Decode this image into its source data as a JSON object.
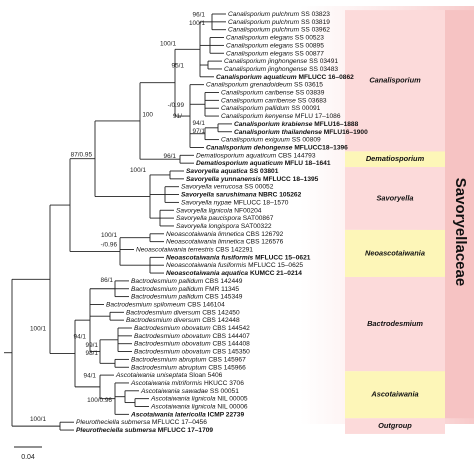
{
  "leaves": [
    {
      "name": "Canalisporium pulchrum",
      "strain": "SS 03823"
    },
    {
      "name": "Canalisporium pulchrum",
      "strain": "SS 03819"
    },
    {
      "name": "Canalisporium pulchrum",
      "strain": "SS 03962"
    },
    {
      "name": "Canalisporium elegans",
      "strain": "SS 00523"
    },
    {
      "name": "Canalisporium elegans",
      "strain": "SS 00895"
    },
    {
      "name": "Canalisporium elegans",
      "strain": "SS 00877"
    },
    {
      "name": "Canalisporium jinghongense",
      "strain": "SS 03491"
    },
    {
      "name": "Canalisporium jinghongense",
      "strain": "SS 03483"
    },
    {
      "name": "Canalisporium aquaticum",
      "strain": "MFLUCC 16–0862",
      "bold": true
    },
    {
      "name": "Canalisporium grenadoideum",
      "strain": "SS 03615"
    },
    {
      "name": "Canalisporium caribense",
      "strain": "SS 03839"
    },
    {
      "name": "Canalisporium carribense",
      "strain": "SS 03683"
    },
    {
      "name": "Canalisporium pallidum",
      "strain": "SS 00091"
    },
    {
      "name": "Canalisporium kenyense",
      "strain": "MFLU 17–1086"
    },
    {
      "name": "Canalisporium krabiense",
      "strain": "MFLU16–1888",
      "bold": true
    },
    {
      "name": "Canalisporium thailandense",
      "strain": "MFLU16–1900",
      "bold": true
    },
    {
      "name": "Canalisporium exiguum",
      "strain": "SS 00809"
    },
    {
      "name": "Canalisporium dehongense",
      "strain": "MFLUCC18–1396",
      "bold": true
    },
    {
      "name": "Dematiosporium aquaticum",
      "strain": "CBS 144793"
    },
    {
      "name": "Dematiosporium aquaticum",
      "strain": "MFLU 18–1641",
      "bold": true
    },
    {
      "name": "Savoryella aquatica",
      "strain": "SS 03801",
      "bold": true
    },
    {
      "name": "Savoryella yunnanensis",
      "strain": "MFLUCC 18–1395",
      "bold": true
    },
    {
      "name": "Savoryella verrucosa",
      "strain": "SS 00052"
    },
    {
      "name": "Savoryella sarushimana",
      "strain": "NBRC 105262",
      "bold": true
    },
    {
      "name": "Savoryella nypae",
      "strain": "MFLUCC 18–1570"
    },
    {
      "name": "Savoryella lignicola",
      "strain": "NF00204"
    },
    {
      "name": "Savoryella paucispora",
      "strain": "SAT00867"
    },
    {
      "name": "Savoryella longispora",
      "strain": "SAT00322"
    },
    {
      "name": "Neoascotaiwania limnetica",
      "strain": "CBS 126792"
    },
    {
      "name": "Neoascotaiwania limnetica",
      "strain": "CBS 126576"
    },
    {
      "name": "Neoascotaiwania terrestris",
      "strain": "CBS 142291"
    },
    {
      "name": "Neoascotaiwania fusiformis",
      "strain": "MFLUCC 15–0621",
      "bold": true
    },
    {
      "name": "Neoascotaiwania fusiformis",
      "strain": "MFLUCC 15–0625"
    },
    {
      "name": "Neoascotaiwania aquatica",
      "strain": "KUMCC 21–0214",
      "bold": true,
      "color": "#e0201b"
    },
    {
      "name": "Bactrodesmium pallidum",
      "strain": "CBS 142449"
    },
    {
      "name": "Bactrodesmium pallidum",
      "strain": "FMR 11345"
    },
    {
      "name": "Bactrodesmium pallidum",
      "strain": "CBS 145349"
    },
    {
      "name": "Bactrodesmium spilomeum",
      "strain": "CBS 146104"
    },
    {
      "name": "Bactrodesmium diversum",
      "strain": "CBS 142450"
    },
    {
      "name": "Bactrodesmium diversum",
      "strain": "CBS 142448"
    },
    {
      "name": "Bactrodesmium obovatum",
      "strain": "CBS 144542"
    },
    {
      "name": "Bactrodesmium obovatum",
      "strain": "CBS 144407"
    },
    {
      "name": "Bactrodesmium obovatum",
      "strain": "CBS 144408"
    },
    {
      "name": "Bactrodesmium obovatum",
      "strain": "CBS 145350"
    },
    {
      "name": "Bactrodesmium abruptum",
      "strain": "CBS 145967"
    },
    {
      "name": "Bactrodesmium abruptum",
      "strain": "CBS 145966"
    },
    {
      "name": "Ascotaiwania uniseptata",
      "strain": "Sloan 5406"
    },
    {
      "name": "Ascotaiwania mitriformis",
      "strain": "HKUCC 3706"
    },
    {
      "name": "Ascotaiwania sawadae",
      "strain": "SS 00051"
    },
    {
      "name": "Ascotaiwania lignicola",
      "strain": "NIL 00005"
    },
    {
      "name": "Ascotaiwania lignicola",
      "strain": "NIL 00006"
    },
    {
      "name": "Ascotaiwania latericolla",
      "strain": "ICMP 22739",
      "bold": true
    },
    {
      "name": "Pleurotheciella submersa",
      "strain": "MFLUCC 17–0456"
    },
    {
      "name": "Pleurotheciella submersa",
      "strain": "MFLUCC 17–1709",
      "bold": true
    }
  ],
  "support_values": [
    "96/1",
    "100/1",
    "100/1",
    "95/1",
    "100",
    "-/0.99",
    "91/-",
    "94/1",
    "97/1",
    "87/0.95",
    "96/1",
    "100/1",
    "100/1",
    "-/0.96",
    "86/1",
    "94/1",
    "99/1",
    "98/1",
    "100/1",
    "94/1",
    "100/0.96",
    "100/1"
  ],
  "clades": [
    "Canalisporium",
    "Dematiosporium",
    "Savoryella",
    "Neoascotaiwania",
    "Bactrodesmium",
    "Ascotaiwania",
    "Outgroup"
  ],
  "family": "Savoryellaceae",
  "scale_bar": "0.04"
}
